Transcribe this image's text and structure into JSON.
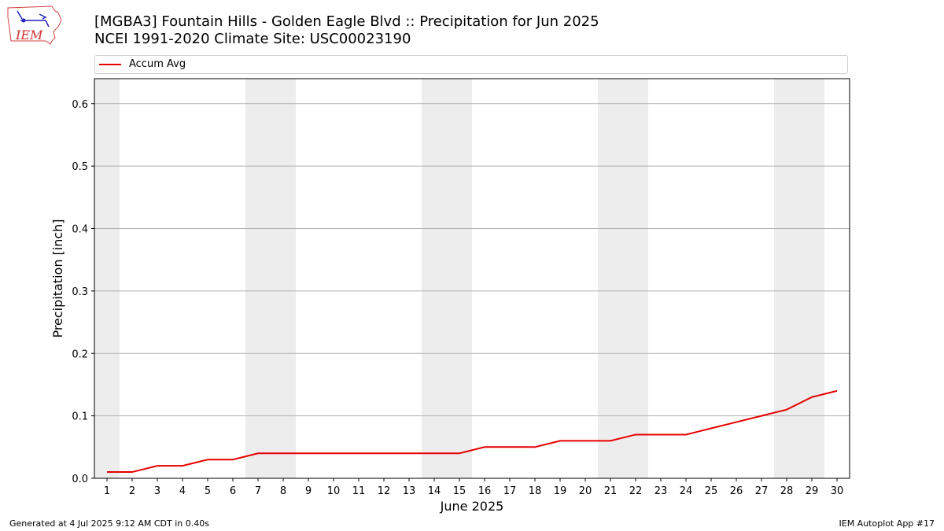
{
  "logo": {
    "text": "IEM",
    "icon": "iowa-state-outline-logo"
  },
  "header": {
    "line1": "[MGBA3] Fountain Hills - Golden Eagle Blvd :: Precipitation for Jun 2025",
    "line2": "NCEI 1991-2020 Climate Site: USC00023190"
  },
  "footer": {
    "left": "Generated at 4 Jul 2025 9:12 AM CDT in 0.40s",
    "right": "IEM Autoplot App #17"
  },
  "chart_data": {
    "type": "line",
    "title": "[MGBA3] Fountain Hills - Golden Eagle Blvd :: Precipitation for Jun 2025",
    "subtitle": "NCEI 1991-2020 Climate Site: USC00023190",
    "xlabel": "June 2025",
    "ylabel": "Precipitation [inch]",
    "x": [
      1,
      2,
      3,
      4,
      5,
      6,
      7,
      8,
      9,
      10,
      11,
      12,
      13,
      14,
      15,
      16,
      17,
      18,
      19,
      20,
      21,
      22,
      23,
      24,
      25,
      26,
      27,
      28,
      29,
      30
    ],
    "xlim": [
      0.5,
      30.5
    ],
    "ylim": [
      0,
      0.64
    ],
    "yticks": [
      0.0,
      0.1,
      0.2,
      0.3,
      0.4,
      0.5,
      0.6
    ],
    "ytick_labels": [
      "0.0",
      "0.1",
      "0.2",
      "0.3",
      "0.4",
      "0.5",
      "0.6"
    ],
    "grid": "horizontal",
    "legend_position": "top",
    "weekend_shading_days": [
      1,
      7,
      8,
      14,
      15,
      21,
      22,
      28,
      29
    ],
    "series": [
      {
        "name": "Accum Avg",
        "color": "#e60000",
        "values": [
          0.01,
          0.01,
          0.02,
          0.02,
          0.03,
          0.03,
          0.04,
          0.04,
          0.04,
          0.04,
          0.04,
          0.04,
          0.04,
          0.04,
          0.04,
          0.05,
          0.05,
          0.05,
          0.06,
          0.06,
          0.06,
          0.07,
          0.07,
          0.07,
          0.08,
          0.09,
          0.1,
          0.11,
          0.13,
          0.14
        ]
      }
    ]
  }
}
